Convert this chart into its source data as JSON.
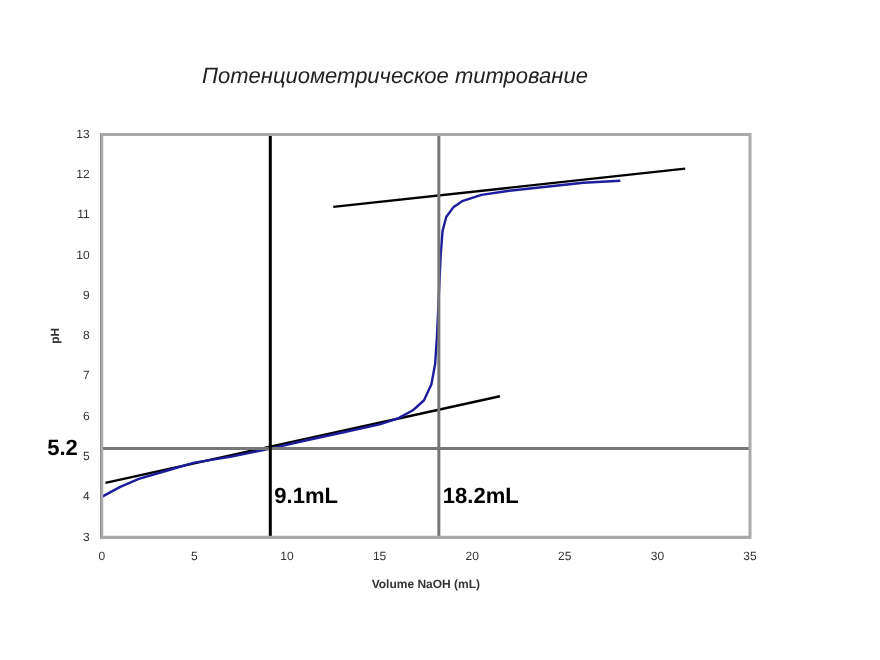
{
  "chart_data": {
    "type": "line",
    "title": "Потенциометрическое титрование",
    "xlabel": "Volume NaOH (mL)",
    "ylabel": "pH",
    "series": [
      {
        "color": "#1c1c9c",
        "x": [
          0,
          1,
          2,
          3.5,
          5,
          7,
          9.1,
          11,
          13,
          15,
          16,
          16.8,
          17.4,
          17.8,
          18.0,
          18.1,
          18.2,
          18.3,
          18.4,
          18.6,
          19,
          19.5,
          20.5,
          22,
          24,
          26,
          28
        ],
        "values": [
          4.0,
          4.25,
          4.45,
          4.65,
          4.85,
          5.0,
          5.2,
          5.4,
          5.6,
          5.8,
          5.95,
          6.15,
          6.4,
          6.8,
          7.3,
          8.0,
          9.0,
          10.0,
          10.6,
          10.95,
          11.2,
          11.35,
          11.5,
          11.6,
          11.7,
          11.8,
          11.85
        ]
      },
      {
        "type": "line",
        "color": "#000000",
        "x": [
          0.2,
          21.5
        ],
        "values": [
          4.35,
          6.5
        ]
      },
      {
        "type": "line",
        "color": "#000000",
        "x": [
          12.5,
          31.5
        ],
        "values": [
          11.2,
          12.15
        ]
      }
    ],
    "xlim": [
      0,
      35
    ],
    "xticks": [
      0,
      5,
      10,
      15,
      20,
      25,
      30,
      35
    ],
    "ylim": [
      3,
      13
    ],
    "yticks": [
      3,
      4,
      5,
      6,
      7,
      8,
      9,
      10,
      11,
      12,
      13
    ],
    "ref_lines": [
      {
        "axis": "y",
        "value": 5.2,
        "label": "5.2",
        "color": "#777777"
      },
      {
        "axis": "x",
        "value": 9.1,
        "label": "9.1mL",
        "color": "#000000"
      },
      {
        "axis": "x",
        "value": 18.2,
        "label": "18.2mL",
        "color": "#777777"
      }
    ],
    "grid": false,
    "legend": false,
    "marker": "none",
    "line_style": "solid"
  }
}
